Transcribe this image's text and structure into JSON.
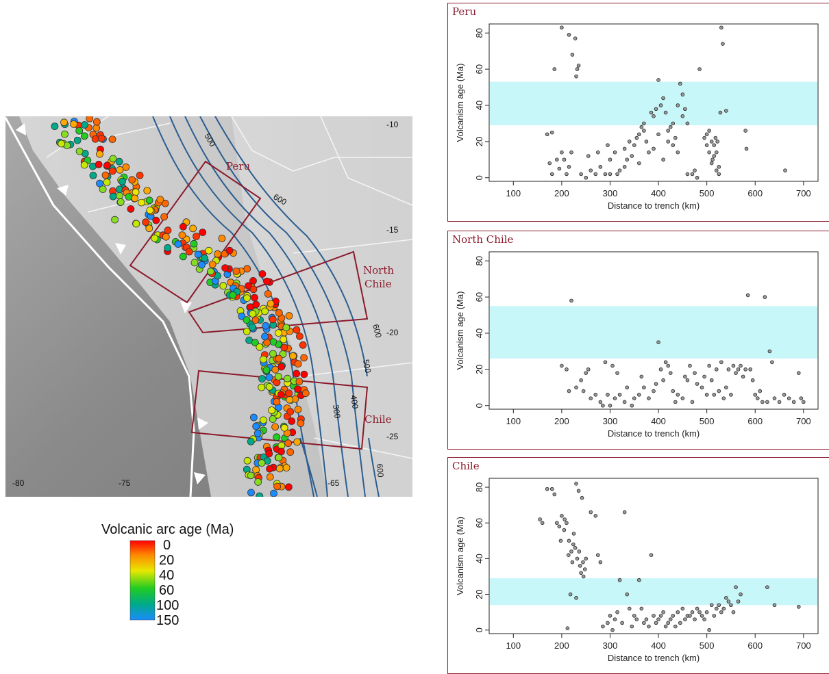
{
  "map": {
    "longitude_ticks": [
      "-80",
      "-75",
      "-65"
    ],
    "latitude_ticks": [
      "-10",
      "-15",
      "-20",
      "-25"
    ],
    "regions": [
      "Peru",
      "North",
      "Chile",
      "Chile"
    ],
    "contour_labels": [
      "500",
      "600",
      "600",
      "500",
      "400",
      "300",
      "600"
    ],
    "colors": {
      "trench": "#ffffff",
      "contour": "#2a5d8f",
      "region_box": "#8b1a2b",
      "land": "#c8c8c8",
      "ocean": "#8e8e8e"
    }
  },
  "legend": {
    "title": "Volcanic arc age (Ma)",
    "ticks": [
      "0",
      "20",
      "40",
      "60",
      "100",
      "150"
    ],
    "colors": [
      "#ff0000",
      "#ff8800",
      "#e8e800",
      "#22cc22",
      "#00aa88",
      "#1a8cff"
    ]
  },
  "chart_data": [
    {
      "type": "scatter",
      "title": "Peru",
      "xlabel": "Distance to trench (km)",
      "ylabel": "Volcanism age (Ma)",
      "xlim": [
        50,
        730
      ],
      "ylim": [
        -2,
        85
      ],
      "xticks": [
        "100",
        "200",
        "300",
        "400",
        "500",
        "600",
        "700"
      ],
      "yticks": [
        "0",
        "20",
        "40",
        "60",
        "80"
      ],
      "band": [
        29,
        53
      ],
      "band_color": "#c8f7f9",
      "points": [
        [
          170,
          24
        ],
        [
          180,
          25
        ],
        [
          185,
          60
        ],
        [
          200,
          83
        ],
        [
          215,
          79
        ],
        [
          222,
          68
        ],
        [
          228,
          77
        ],
        [
          232,
          60
        ],
        [
          230,
          56
        ],
        [
          235,
          62
        ],
        [
          205,
          10
        ],
        [
          210,
          2
        ],
        [
          195,
          5
        ],
        [
          180,
          2
        ],
        [
          175,
          8
        ],
        [
          220,
          14
        ],
        [
          240,
          2
        ],
        [
          260,
          4
        ],
        [
          280,
          6
        ],
        [
          290,
          2
        ],
        [
          300,
          10
        ],
        [
          310,
          14
        ],
        [
          320,
          4
        ],
        [
          330,
          16
        ],
        [
          340,
          20
        ],
        [
          350,
          18
        ],
        [
          360,
          24
        ],
        [
          365,
          28
        ],
        [
          370,
          30
        ],
        [
          375,
          20
        ],
        [
          380,
          14
        ],
        [
          385,
          36
        ],
        [
          390,
          34
        ],
        [
          395,
          38
        ],
        [
          400,
          54
        ],
        [
          405,
          40
        ],
        [
          410,
          44
        ],
        [
          415,
          36
        ],
        [
          420,
          20
        ],
        [
          425,
          28
        ],
        [
          430,
          18
        ],
        [
          435,
          22
        ],
        [
          440,
          40
        ],
        [
          445,
          52
        ],
        [
          450,
          46
        ],
        [
          455,
          38
        ],
        [
          460,
          30
        ],
        [
          470,
          2
        ],
        [
          480,
          0
        ],
        [
          485,
          60
        ],
        [
          495,
          22
        ],
        [
          500,
          24
        ],
        [
          505,
          26
        ],
        [
          510,
          20
        ],
        [
          515,
          18
        ],
        [
          520,
          14
        ],
        [
          525,
          6
        ],
        [
          528,
          36
        ],
        [
          530,
          83
        ],
        [
          533,
          74
        ],
        [
          540,
          37
        ],
        [
          515,
          12
        ],
        [
          510,
          8
        ],
        [
          520,
          4
        ],
        [
          525,
          2
        ],
        [
          580,
          26
        ],
        [
          582,
          16
        ],
        [
          662,
          4
        ],
        [
          250,
          0
        ],
        [
          270,
          2
        ],
        [
          300,
          2
        ],
        [
          330,
          6
        ],
        [
          345,
          12
        ],
        [
          360,
          8
        ],
        [
          390,
          16
        ],
        [
          410,
          10
        ],
        [
          430,
          30
        ],
        [
          450,
          34
        ],
        [
          200,
          14
        ],
        [
          190,
          10
        ],
        [
          215,
          6
        ],
        [
          255,
          12
        ],
        [
          275,
          14
        ],
        [
          295,
          18
        ],
        [
          315,
          2
        ],
        [
          335,
          10
        ],
        [
          355,
          22
        ],
        [
          370,
          26
        ],
        [
          400,
          24
        ],
        [
          420,
          26
        ],
        [
          440,
          14
        ],
        [
          460,
          2
        ],
        [
          475,
          4
        ],
        [
          500,
          18
        ],
        [
          505,
          14
        ],
        [
          512,
          10
        ],
        [
          518,
          22
        ],
        [
          522,
          20
        ]
      ]
    },
    {
      "type": "scatter",
      "title": "North Chile",
      "xlabel": "Distance to trench (km)",
      "ylabel": "Volcanism age (Ma)",
      "xlim": [
        50,
        730
      ],
      "ylim": [
        -2,
        85
      ],
      "xticks": [
        "100",
        "200",
        "300",
        "400",
        "500",
        "600",
        "700"
      ],
      "yticks": [
        "0",
        "20",
        "40",
        "60",
        "80"
      ],
      "band": [
        26,
        55
      ],
      "band_color": "#c8f7f9",
      "points": [
        [
          200,
          22
        ],
        [
          210,
          20
        ],
        [
          215,
          8
        ],
        [
          220,
          58
        ],
        [
          230,
          10
        ],
        [
          240,
          14
        ],
        [
          245,
          8
        ],
        [
          250,
          18
        ],
        [
          255,
          20
        ],
        [
          260,
          4
        ],
        [
          270,
          6
        ],
        [
          280,
          2
        ],
        [
          285,
          0
        ],
        [
          290,
          24
        ],
        [
          295,
          6
        ],
        [
          300,
          0
        ],
        [
          305,
          22
        ],
        [
          310,
          4
        ],
        [
          315,
          18
        ],
        [
          330,
          2
        ],
        [
          350,
          4
        ],
        [
          360,
          6
        ],
        [
          370,
          10
        ],
        [
          380,
          4
        ],
        [
          390,
          8
        ],
        [
          400,
          35
        ],
        [
          405,
          20
        ],
        [
          410,
          14
        ],
        [
          415,
          24
        ],
        [
          420,
          22
        ],
        [
          425,
          18
        ],
        [
          430,
          8
        ],
        [
          440,
          6
        ],
        [
          450,
          4
        ],
        [
          460,
          14
        ],
        [
          465,
          22
        ],
        [
          470,
          2
        ],
        [
          480,
          12
        ],
        [
          490,
          10
        ],
        [
          500,
          6
        ],
        [
          505,
          22
        ],
        [
          510,
          14
        ],
        [
          520,
          20
        ],
        [
          525,
          8
        ],
        [
          530,
          24
        ],
        [
          540,
          10
        ],
        [
          550,
          6
        ],
        [
          555,
          22
        ],
        [
          560,
          18
        ],
        [
          565,
          20
        ],
        [
          570,
          22
        ],
        [
          575,
          16
        ],
        [
          580,
          20
        ],
        [
          585,
          61
        ],
        [
          590,
          20
        ],
        [
          595,
          14
        ],
        [
          600,
          6
        ],
        [
          610,
          8
        ],
        [
          620,
          60
        ],
        [
          625,
          2
        ],
        [
          630,
          30
        ],
        [
          635,
          24
        ],
        [
          640,
          4
        ],
        [
          650,
          2
        ],
        [
          660,
          6
        ],
        [
          670,
          4
        ],
        [
          680,
          2
        ],
        [
          690,
          18
        ],
        [
          695,
          4
        ],
        [
          700,
          2
        ],
        [
          320,
          6
        ],
        [
          335,
          10
        ],
        [
          345,
          0
        ],
        [
          365,
          16
        ],
        [
          395,
          12
        ],
        [
          435,
          2
        ],
        [
          455,
          16
        ],
        [
          475,
          18
        ],
        [
          495,
          16
        ],
        [
          515,
          6
        ],
        [
          535,
          4
        ],
        [
          545,
          20
        ],
        [
          605,
          4
        ],
        [
          615,
          2
        ]
      ]
    },
    {
      "type": "scatter",
      "title": "Chile",
      "xlabel": "Distance to trench (km)",
      "ylabel": "Volcanism age (Ma)",
      "xlim": [
        50,
        730
      ],
      "ylim": [
        -2,
        85
      ],
      "xticks": [
        "100",
        "200",
        "300",
        "400",
        "500",
        "600",
        "700"
      ],
      "yticks": [
        "0",
        "20",
        "40",
        "60",
        "80"
      ],
      "band": [
        14,
        29
      ],
      "band_color": "#c8f7f9",
      "points": [
        [
          155,
          62
        ],
        [
          160,
          60
        ],
        [
          170,
          79
        ],
        [
          180,
          79
        ],
        [
          185,
          76
        ],
        [
          190,
          60
        ],
        [
          195,
          58
        ],
        [
          200,
          64
        ],
        [
          205,
          56
        ],
        [
          210,
          60
        ],
        [
          215,
          50
        ],
        [
          220,
          44
        ],
        [
          222,
          38
        ],
        [
          225,
          54
        ],
        [
          228,
          46
        ],
        [
          230,
          82
        ],
        [
          232,
          40
        ],
        [
          235,
          78
        ],
        [
          238,
          36
        ],
        [
          240,
          32
        ],
        [
          242,
          74
        ],
        [
          245,
          30
        ],
        [
          248,
          34
        ],
        [
          250,
          40
        ],
        [
          212,
          1
        ],
        [
          218,
          20
        ],
        [
          230,
          18
        ],
        [
          260,
          66
        ],
        [
          270,
          64
        ],
        [
          275,
          42
        ],
        [
          280,
          38
        ],
        [
          300,
          8
        ],
        [
          310,
          6
        ],
        [
          320,
          28
        ],
        [
          330,
          66
        ],
        [
          335,
          20
        ],
        [
          340,
          12
        ],
        [
          350,
          8
        ],
        [
          360,
          28
        ],
        [
          370,
          4
        ],
        [
          380,
          2
        ],
        [
          385,
          42
        ],
        [
          390,
          8
        ],
        [
          400,
          6
        ],
        [
          410,
          10
        ],
        [
          420,
          4
        ],
        [
          430,
          8
        ],
        [
          440,
          10
        ],
        [
          450,
          12
        ],
        [
          460,
          8
        ],
        [
          470,
          10
        ],
        [
          480,
          12
        ],
        [
          490,
          8
        ],
        [
          500,
          10
        ],
        [
          505,
          0
        ],
        [
          510,
          14
        ],
        [
          520,
          12
        ],
        [
          530,
          10
        ],
        [
          540,
          18
        ],
        [
          545,
          16
        ],
        [
          550,
          14
        ],
        [
          560,
          24
        ],
        [
          570,
          20
        ],
        [
          625,
          24
        ],
        [
          640,
          14
        ],
        [
          690,
          13
        ],
        [
          285,
          2
        ],
        [
          295,
          4
        ],
        [
          305,
          0
        ],
        [
          315,
          10
        ],
        [
          325,
          4
        ],
        [
          345,
          2
        ],
        [
          355,
          6
        ],
        [
          365,
          12
        ],
        [
          375,
          6
        ],
        [
          395,
          4
        ],
        [
          405,
          8
        ],
        [
          415,
          2
        ],
        [
          425,
          6
        ],
        [
          435,
          2
        ],
        [
          445,
          4
        ],
        [
          455,
          6
        ],
        [
          465,
          8
        ],
        [
          475,
          6
        ],
        [
          485,
          10
        ],
        [
          495,
          6
        ],
        [
          515,
          8
        ],
        [
          525,
          14
        ],
        [
          535,
          12
        ],
        [
          555,
          10
        ],
        [
          565,
          16
        ],
        [
          198,
          50
        ],
        [
          206,
          62
        ],
        [
          214,
          42
        ],
        [
          224,
          48
        ],
        [
          236,
          44
        ],
        [
          244,
          38
        ]
      ]
    }
  ]
}
